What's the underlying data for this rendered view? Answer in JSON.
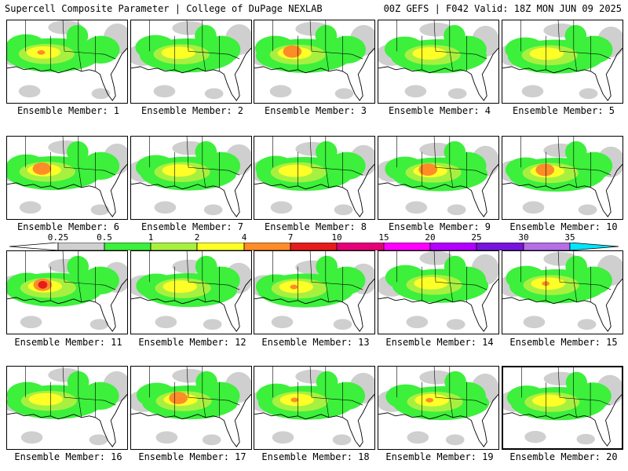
{
  "header": {
    "title": "Supercell Composite Parameter | College of DuPage NEXLAB",
    "run_info": "00Z GEFS | F042 Valid: 18Z MON JUN 09 2025"
  },
  "colors": {
    "background": "#ffffff",
    "map_lines": "#000000",
    "scale": [
      "#cfcfcf",
      "#3cf03c",
      "#a8f040",
      "#ffff28",
      "#ff8c28",
      "#e61c1c",
      "#e60078",
      "#ff00ff",
      "#b400ff",
      "#7814dc",
      "#b46ee6",
      "#00e6ff"
    ]
  },
  "scale": {
    "labels": [
      "0.25",
      "0.5",
      "1",
      "2",
      "4",
      "7",
      "10",
      "15",
      "20",
      "25",
      "30",
      "35"
    ]
  },
  "members": [
    {
      "label": "Ensemble Member: 1",
      "peak": "orange-small",
      "highlighted": false
    },
    {
      "label": "Ensemble Member: 2",
      "peak": "yellow",
      "highlighted": false
    },
    {
      "label": "Ensemble Member: 3",
      "peak": "orange",
      "highlighted": false
    },
    {
      "label": "Ensemble Member: 4",
      "peak": "yellow",
      "highlighted": false
    },
    {
      "label": "Ensemble Member: 5",
      "peak": "yellow",
      "highlighted": false
    },
    {
      "label": "Ensemble Member: 6",
      "peak": "orange",
      "highlighted": false
    },
    {
      "label": "Ensemble Member: 7",
      "peak": "yellow",
      "highlighted": false
    },
    {
      "label": "Ensemble Member: 8",
      "peak": "yellow",
      "highlighted": false
    },
    {
      "label": "Ensemble Member: 9",
      "peak": "orange",
      "highlighted": false
    },
    {
      "label": "Ensemble Member: 10",
      "peak": "orange",
      "highlighted": false
    },
    {
      "label": "Ensemble Member: 11",
      "peak": "red",
      "highlighted": false
    },
    {
      "label": "Ensemble Member: 12",
      "peak": "yellow",
      "highlighted": false
    },
    {
      "label": "Ensemble Member: 13",
      "peak": "orange-small",
      "highlighted": false
    },
    {
      "label": "Ensemble Member: 14",
      "peak": "yellow",
      "highlighted": false
    },
    {
      "label": "Ensemble Member: 15",
      "peak": "orange-small",
      "highlighted": false
    },
    {
      "label": "Ensemble Member: 16",
      "peak": "yellow",
      "highlighted": false
    },
    {
      "label": "Ensemble Member: 17",
      "peak": "orange",
      "highlighted": false
    },
    {
      "label": "Ensemble Member: 18",
      "peak": "orange-small",
      "highlighted": false
    },
    {
      "label": "Ensemble Member: 19",
      "peak": "orange-small",
      "highlighted": false
    },
    {
      "label": "Ensemble Member: 20",
      "peak": "yellow",
      "highlighted": true
    }
  ]
}
